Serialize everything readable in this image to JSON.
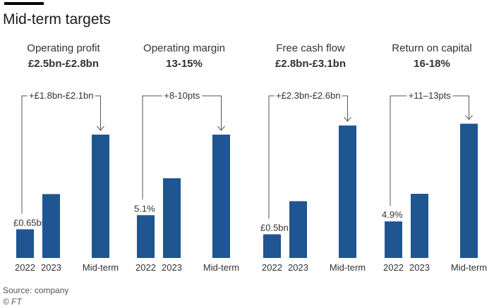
{
  "title": "Mid-term targets",
  "source": "Source: company",
  "copyright": "© FT",
  "colors": {
    "bar": "#1f5591",
    "bracket": "#555555",
    "text": "#333333"
  },
  "chart_data": [
    {
      "type": "bar",
      "title": "Operating profit",
      "subtitle": "£2.5bn-£2.8bn",
      "categories": [
        "2022",
        "2023",
        "Mid-term"
      ],
      "values": [
        0.65,
        1.45,
        2.8
      ],
      "value_labels": [
        "£0.65bn",
        "",
        ""
      ],
      "annotation": "+£1.8bn-£2.1bn",
      "ylim": [
        0,
        3.2
      ]
    },
    {
      "type": "bar",
      "title": "Operating margin",
      "subtitle": "13-15%",
      "categories": [
        "2022",
        "2023",
        "Mid-term"
      ],
      "values": [
        5.1,
        9.5,
        14.7
      ],
      "value_labels": [
        "5.1%",
        "",
        ""
      ],
      "annotation": "+8-10pts",
      "ylim": [
        0,
        16.8
      ]
    },
    {
      "type": "bar",
      "title": "Free cash flow",
      "subtitle": "£2.8bn-£3.1bn",
      "categories": [
        "2022",
        "2023",
        "Mid-term"
      ],
      "values": [
        0.5,
        1.2,
        2.8
      ],
      "value_labels": [
        "£0.5bn",
        "",
        ""
      ],
      "annotation": "+£2.3bn-£2.6bn",
      "ylim": [
        0,
        2.98
      ]
    },
    {
      "type": "bar",
      "title": "Return on capital",
      "subtitle": "16-18%",
      "categories": [
        "2022",
        "2023",
        "Mid-term"
      ],
      "values": [
        4.9,
        8.6,
        18.0
      ],
      "value_labels": [
        "4.9%",
        "",
        ""
      ],
      "annotation": "+11–13pts",
      "ylim": [
        0,
        18.9
      ]
    }
  ]
}
